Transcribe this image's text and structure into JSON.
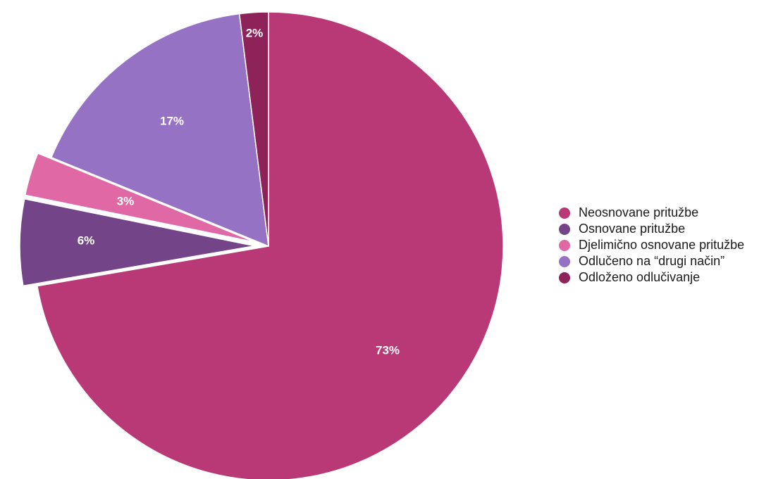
{
  "chart_data": {
    "type": "pie",
    "title": "",
    "slices": [
      {
        "label": "Neosnovane pritužbe",
        "value": 73,
        "display": "73%",
        "color": "#b83976",
        "exploded": false
      },
      {
        "label": "Osnovane pritužbe",
        "value": 6,
        "display": "6%",
        "color": "#734488",
        "exploded": true
      },
      {
        "label": "Djelimično osnovane pritužbe",
        "value": 3,
        "display": "3%",
        "color": "#df68a5",
        "exploded": true
      },
      {
        "label": "Odlučeno na “drugi način”",
        "value": 17,
        "display": "17%",
        "color": "#9672c5",
        "exploded": false
      },
      {
        "label": "Odloženo odlučivanje",
        "value": 2,
        "display": "2%",
        "color": "#8d2358",
        "exploded": false
      }
    ],
    "start_angle": "12 o'clock",
    "direction": "clockwise",
    "legend": {
      "position": "right"
    }
  }
}
